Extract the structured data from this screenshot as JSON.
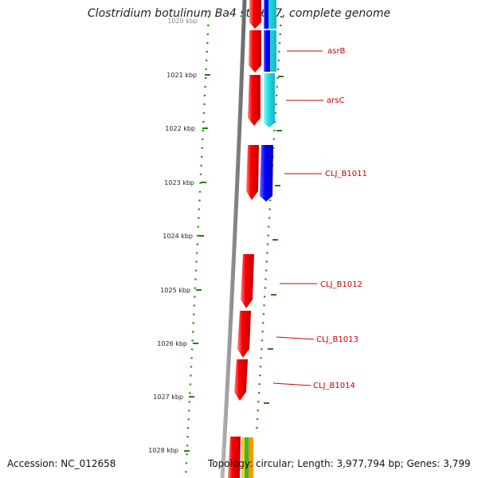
{
  "title": "Clostridium botulinum Ba4 str. 657, complete genome",
  "footer": {
    "accession": "Accession: NC_012658",
    "summary": "Topology: circular; Length: 3,977,794 bp; Genes: 3,799"
  },
  "scale_labels": [
    "1020 kbp",
    "1021 kbp",
    "1022 kbp",
    "1023 kbp",
    "1024 kbp",
    "1025 kbp",
    "1026 kbp",
    "1027 kbp",
    "1028 kbp"
  ],
  "gene_labels": [
    "asrB",
    "arsC",
    "CLJ_B1011",
    "CLJ_B1012",
    "CLJ_B1013",
    "CLJ_B1014"
  ],
  "colors": {
    "tick": "#2a7a17",
    "dots": "#2a8a17",
    "backbone": "#8c8c8c",
    "gene": "#ff0000",
    "gene_label": "#cc0000",
    "cds_blue": "#1a1aff",
    "cds_cyan": "#22d8e6",
    "cds_green": "#33bb33",
    "cds_orange": "#ff9900"
  }
}
